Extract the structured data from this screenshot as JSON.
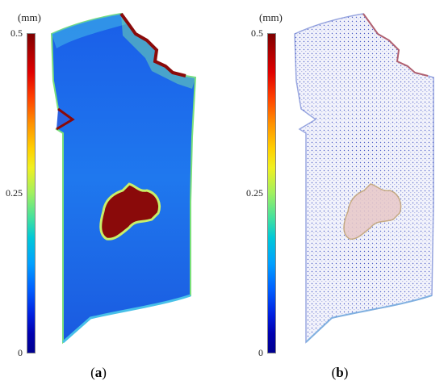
{
  "panels": [
    {
      "id": "a",
      "unit": "(mm)",
      "ticks": [
        "0.5",
        "0.25",
        "0"
      ],
      "caption_open": "(",
      "caption_letter": "a",
      "caption_close": ")"
    },
    {
      "id": "b",
      "unit": "(mm)",
      "ticks": [
        "0.5",
        "0.25",
        "0"
      ],
      "caption_open": "(",
      "caption_letter": "b",
      "caption_close": ")"
    }
  ],
  "colorbar": {
    "min": 0,
    "max": 0.5,
    "colormap": "jet",
    "colors": [
      "#00008f",
      "#0000ff",
      "#00ffff",
      "#ffff00",
      "#ff0000",
      "#7f0000"
    ]
  },
  "scan_colors": {
    "base": "#1e6ef0",
    "edge": "#7be07a",
    "defect": "#8a0a0a",
    "points": "#5060c8"
  }
}
